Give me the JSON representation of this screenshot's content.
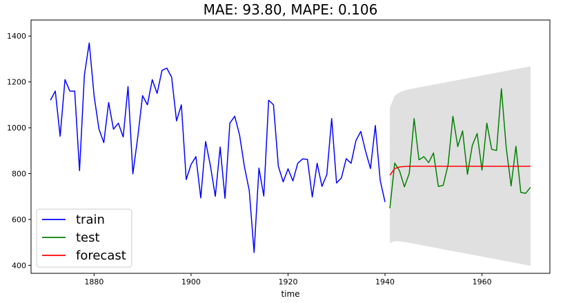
{
  "chart_data": {
    "type": "line",
    "title": "MAE: 93.80, MAPE: 0.106",
    "xlabel": "time",
    "ylabel": "",
    "xlim": [
      1867,
      1974
    ],
    "ylim": [
      365,
      1470
    ],
    "x_ticks": [
      1880,
      1900,
      1920,
      1940,
      1960
    ],
    "y_ticks": [
      400,
      600,
      800,
      1000,
      1200,
      1400
    ],
    "grid": false,
    "legend_position": "lower-left",
    "series": [
      {
        "name": "train",
        "color": "#0000ff",
        "x": [
          1871,
          1872,
          1873,
          1874,
          1875,
          1876,
          1877,
          1878,
          1879,
          1880,
          1881,
          1882,
          1883,
          1884,
          1885,
          1886,
          1887,
          1888,
          1889,
          1890,
          1891,
          1892,
          1893,
          1894,
          1895,
          1896,
          1897,
          1898,
          1899,
          1900,
          1901,
          1902,
          1903,
          1904,
          1905,
          1906,
          1907,
          1908,
          1909,
          1910,
          1911,
          1912,
          1913,
          1914,
          1915,
          1916,
          1917,
          1918,
          1919,
          1920,
          1921,
          1922,
          1923,
          1924,
          1925,
          1926,
          1927,
          1928,
          1929,
          1930,
          1931,
          1932,
          1933,
          1934,
          1935,
          1936,
          1937,
          1938,
          1939,
          1940
        ],
        "y": [
          1120,
          1160,
          963,
          1210,
          1160,
          1160,
          813,
          1230,
          1370,
          1140,
          995,
          935,
          1110,
          994,
          1020,
          960,
          1180,
          799,
          958,
          1140,
          1100,
          1210,
          1150,
          1250,
          1260,
          1220,
          1030,
          1100,
          774,
          840,
          874,
          694,
          940,
          833,
          701,
          916,
          692,
          1020,
          1050,
          969,
          831,
          726,
          456,
          824,
          702,
          1120,
          1100,
          832,
          764,
          821,
          768,
          845,
          864,
          862,
          698,
          845,
          744,
          796,
          1040,
          759,
          781,
          865,
          845,
          944,
          984,
          897,
          822,
          1010,
          771,
          676
        ]
      },
      {
        "name": "test",
        "color": "#008000",
        "x": [
          1941,
          1942,
          1943,
          1944,
          1945,
          1946,
          1947,
          1948,
          1949,
          1950,
          1951,
          1952,
          1953,
          1954,
          1955,
          1956,
          1957,
          1958,
          1959,
          1960,
          1961,
          1962,
          1963,
          1964,
          1965,
          1966,
          1967,
          1968,
          1969,
          1970
        ],
        "y": [
          649,
          846,
          812,
          742,
          801,
          1040,
          860,
          874,
          848,
          890,
          744,
          749,
          838,
          1050,
          918,
          986,
          797,
          923,
          975,
          815,
          1020,
          906,
          901,
          1170,
          912,
          746,
          919,
          718,
          714,
          740
        ]
      },
      {
        "name": "forecast",
        "color": "#ff0000",
        "x": [
          1941,
          1942,
          1943,
          1944,
          1945,
          1946,
          1947,
          1948,
          1949,
          1950,
          1951,
          1952,
          1953,
          1954,
          1955,
          1956,
          1957,
          1958,
          1959,
          1960,
          1961,
          1962,
          1963,
          1964,
          1965,
          1966,
          1967,
          1968,
          1969,
          1970
        ],
        "y": [
          793,
          822,
          829,
          831,
          832,
          832,
          832,
          832,
          832,
          832,
          832,
          832,
          832,
          832,
          832,
          832,
          832,
          832,
          832,
          832,
          832,
          832,
          832,
          832,
          832,
          832,
          832,
          832,
          832,
          832
        ]
      }
    ],
    "confidence_band": {
      "color": "#d3d3d3",
      "x": [
        1941,
        1942,
        1943,
        1944,
        1945,
        1946,
        1947,
        1948,
        1949,
        1950,
        1951,
        1952,
        1953,
        1954,
        1955,
        1956,
        1957,
        1958,
        1959,
        1960,
        1961,
        1962,
        1963,
        1964,
        1965,
        1966,
        1967,
        1968,
        1969,
        1970
      ],
      "lower": [
        498,
        505,
        505,
        502,
        498,
        494,
        490,
        486,
        482,
        478,
        474,
        470,
        466,
        462,
        458,
        454,
        450,
        446,
        442,
        438,
        434,
        430,
        426,
        422,
        418,
        414,
        410,
        406,
        402,
        398
      ],
      "upper": [
        1088,
        1140,
        1155,
        1162,
        1168,
        1172,
        1176,
        1180,
        1184,
        1188,
        1192,
        1196,
        1200,
        1204,
        1208,
        1212,
        1216,
        1220,
        1224,
        1228,
        1232,
        1236,
        1240,
        1244,
        1248,
        1252,
        1256,
        1260,
        1264,
        1268
      ]
    }
  }
}
